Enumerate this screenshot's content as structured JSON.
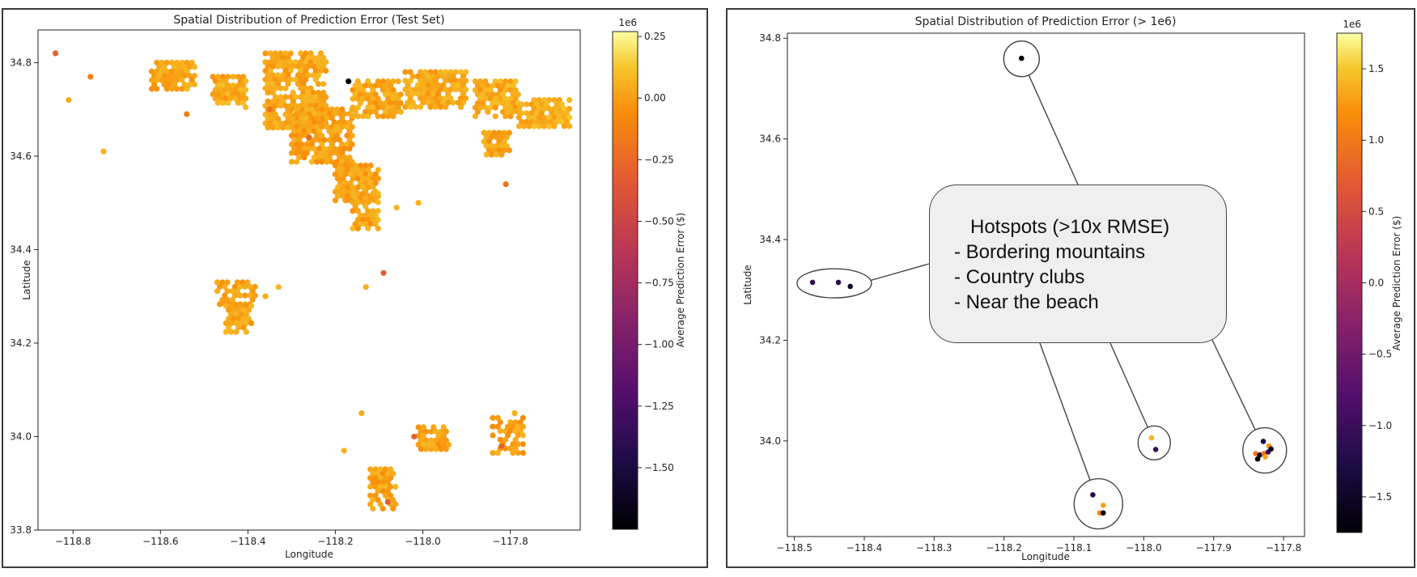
{
  "chart_data": [
    {
      "type": "hexbin",
      "title": "Spatial Distribution of Prediction Error (Test Set)",
      "xlabel": "Longitude",
      "ylabel": "Latitude",
      "xlim": [
        -118.88,
        -117.64
      ],
      "ylim": [
        33.8,
        34.87
      ],
      "xticks": [
        -118.8,
        -118.6,
        -118.4,
        -118.2,
        -118.0,
        -117.8
      ],
      "xtick_labels": [
        "−118.8",
        "−118.6",
        "−118.4",
        "−118.2",
        "−118.0",
        "−117.8"
      ],
      "yticks": [
        33.8,
        34.0,
        34.2,
        34.4,
        34.6,
        34.8
      ],
      "ytick_labels": [
        "33.8",
        "34.0",
        "34.2",
        "34.4",
        "34.6",
        "34.8"
      ],
      "colorbar": {
        "label": "Average Prediction Error ($)",
        "scale_note": "1e6",
        "colormap": "inferno",
        "range": [
          -1.75,
          0.27
        ],
        "ticks": [
          0.25,
          0.0,
          -0.25,
          -0.5,
          -0.75,
          -1.0,
          -1.25,
          -1.5
        ],
        "tick_labels": [
          "0.25",
          "0.00",
          "−0.25",
          "−0.50",
          "−0.75",
          "−1.00",
          "−1.25",
          "−1.50"
        ]
      },
      "clusters": [
        {
          "lon": [
            -118.62,
            -118.52
          ],
          "lat": [
            34.74,
            34.8
          ],
          "value": 0.02
        },
        {
          "lon": [
            -118.48,
            -118.4
          ],
          "lat": [
            34.7,
            34.77
          ],
          "value": 0.03
        },
        {
          "lon": [
            -118.36,
            -118.22
          ],
          "lat": [
            34.66,
            34.82
          ],
          "value": 0.02
        },
        {
          "lon": [
            -118.3,
            -118.16
          ],
          "lat": [
            34.58,
            34.7
          ],
          "value": 0.01
        },
        {
          "lon": [
            -118.16,
            -118.05
          ],
          "lat": [
            34.68,
            34.76
          ],
          "value": 0.02
        },
        {
          "lon": [
            -118.04,
            -117.9
          ],
          "lat": [
            34.7,
            34.78
          ],
          "value": 0.03
        },
        {
          "lon": [
            -117.88,
            -117.78
          ],
          "lat": [
            34.68,
            34.76
          ],
          "value": 0.04
        },
        {
          "lon": [
            -117.86,
            -117.8
          ],
          "lat": [
            34.6,
            34.65
          ],
          "value": 0.02
        },
        {
          "lon": [
            -118.2,
            -118.1
          ],
          "lat": [
            34.5,
            34.58
          ],
          "value": 0.01
        },
        {
          "lon": [
            -118.16,
            -118.1
          ],
          "lat": [
            34.44,
            34.52
          ],
          "value": 0.02
        },
        {
          "lon": [
            -118.47,
            -118.38
          ],
          "lat": [
            34.28,
            34.33
          ],
          "value": 0.01
        },
        {
          "lon": [
            -118.45,
            -118.39
          ],
          "lat": [
            34.22,
            34.28
          ],
          "value": 0.02
        },
        {
          "lon": [
            -118.01,
            -117.94
          ],
          "lat": [
            33.97,
            34.02
          ],
          "value": 0.01
        },
        {
          "lon": [
            -117.84,
            -117.77
          ],
          "lat": [
            33.96,
            34.04
          ],
          "value": 0.0
        },
        {
          "lon": [
            -118.12,
            -118.06
          ],
          "lat": [
            33.84,
            33.93
          ],
          "value": 0.01
        },
        {
          "lon": [
            -117.78,
            -117.66
          ],
          "lat": [
            34.66,
            34.72
          ],
          "value": 0.06
        }
      ],
      "points": [
        {
          "lon": -118.84,
          "lat": 34.82,
          "value": -0.28
        },
        {
          "lon": -118.17,
          "lat": 34.76,
          "value": -1.75
        },
        {
          "lon": -118.09,
          "lat": 34.35,
          "value": -0.32
        },
        {
          "lon": -118.73,
          "lat": 34.61,
          "value": 0.05
        },
        {
          "lon": -118.81,
          "lat": 34.72,
          "value": 0.05
        },
        {
          "lon": -118.76,
          "lat": 34.77,
          "value": -0.12
        },
        {
          "lon": -118.14,
          "lat": 34.05,
          "value": 0.04
        },
        {
          "lon": -118.18,
          "lat": 33.97,
          "value": 0.06
        },
        {
          "lon": -117.79,
          "lat": 34.05,
          "value": 0.05
        },
        {
          "lon": -118.06,
          "lat": 34.49,
          "value": 0.07
        },
        {
          "lon": -118.01,
          "lat": 34.5,
          "value": 0.06
        },
        {
          "lon": -118.13,
          "lat": 34.32,
          "value": 0.05
        },
        {
          "lon": -117.81,
          "lat": 34.54,
          "value": -0.2
        },
        {
          "lon": -118.36,
          "lat": 34.3,
          "value": 0.05
        },
        {
          "lon": -118.33,
          "lat": 34.32,
          "value": 0.08
        },
        {
          "lon": -118.54,
          "lat": 34.69,
          "value": -0.15
        },
        {
          "lon": -118.26,
          "lat": 34.64,
          "value": -0.25
        },
        {
          "lon": -117.82,
          "lat": 33.98,
          "value": -0.3
        },
        {
          "lon": -118.02,
          "lat": 34.0,
          "value": -0.28
        },
        {
          "lon": -118.08,
          "lat": 33.86,
          "value": -0.32
        },
        {
          "lon": -118.35,
          "lat": 34.7,
          "value": -0.2
        }
      ]
    },
    {
      "type": "scatter",
      "title": "Spatial Distribution of Prediction Error (> 1e6)",
      "xlabel": "Longitude",
      "ylabel": "Latitude",
      "xlim": [
        -118.51,
        -117.77
      ],
      "ylim": [
        33.81,
        34.81
      ],
      "xticks": [
        -118.5,
        -118.4,
        -118.3,
        -118.2,
        -118.1,
        -118.0,
        -117.9,
        -117.8
      ],
      "xtick_labels": [
        "−118.5",
        "−118.4",
        "−118.3",
        "−118.2",
        "−118.1",
        "−118.0",
        "−117.9",
        "−117.8"
      ],
      "yticks": [
        34.0,
        34.2,
        34.4,
        34.6,
        34.8
      ],
      "ytick_labels": [
        "34.0",
        "34.2",
        "34.4",
        "34.6",
        "34.8"
      ],
      "colorbar": {
        "label": "Average Prediction Error ($)",
        "scale_note": "1e6",
        "colormap": "inferno",
        "range": [
          -1.75,
          1.75
        ],
        "ticks": [
          1.5,
          1.0,
          0.5,
          0.0,
          -0.5,
          -1.0,
          -1.5
        ],
        "tick_labels": [
          "1.5",
          "1.0",
          "0.5",
          "0.0",
          "−0.5",
          "−1.0",
          "−1.5"
        ]
      },
      "points": [
        {
          "lon": -118.175,
          "lat": 34.76,
          "value": -1.75
        },
        {
          "lon": -118.474,
          "lat": 34.315,
          "value": -1.1
        },
        {
          "lon": -118.437,
          "lat": 34.315,
          "value": -1.2
        },
        {
          "lon": -118.42,
          "lat": 34.307,
          "value": -1.5
        },
        {
          "lon": -118.073,
          "lat": 33.893,
          "value": -1.2
        },
        {
          "lon": -118.058,
          "lat": 33.872,
          "value": 1.3
        },
        {
          "lon": -118.063,
          "lat": 33.857,
          "value": 1.1
        },
        {
          "lon": -118.058,
          "lat": 33.857,
          "value": -1.6
        },
        {
          "lon": -117.989,
          "lat": 34.006,
          "value": 1.4
        },
        {
          "lon": -117.983,
          "lat": 33.983,
          "value": -1.0
        },
        {
          "lon": -117.829,
          "lat": 33.999,
          "value": -1.3
        },
        {
          "lon": -117.821,
          "lat": 33.99,
          "value": 1.2
        },
        {
          "lon": -117.84,
          "lat": 33.975,
          "value": 1.0
        },
        {
          "lon": -117.834,
          "lat": 33.972,
          "value": -1.5
        },
        {
          "lon": -117.828,
          "lat": 33.975,
          "value": 0.9
        },
        {
          "lon": -117.822,
          "lat": 33.978,
          "value": -1.1
        },
        {
          "lon": -117.818,
          "lat": 33.984,
          "value": -1.6
        },
        {
          "lon": -117.837,
          "lat": 33.964,
          "value": -1.7
        },
        {
          "lon": -117.826,
          "lat": 33.968,
          "value": 1.3
        }
      ],
      "hotspot_circles": [
        {
          "lon": -118.175,
          "lat": 34.759
        },
        {
          "lon": -118.443,
          "lat": 34.313
        },
        {
          "lon": -118.065,
          "lat": 33.875
        },
        {
          "lon": -117.985,
          "lat": 33.996
        },
        {
          "lon": -117.827,
          "lat": 33.981
        }
      ],
      "annotation": {
        "title": "Hotspots (>10x RMSE)",
        "items": [
          "- Bordering mountains",
          "- Country clubs",
          "- Near the beach"
        ]
      }
    }
  ]
}
